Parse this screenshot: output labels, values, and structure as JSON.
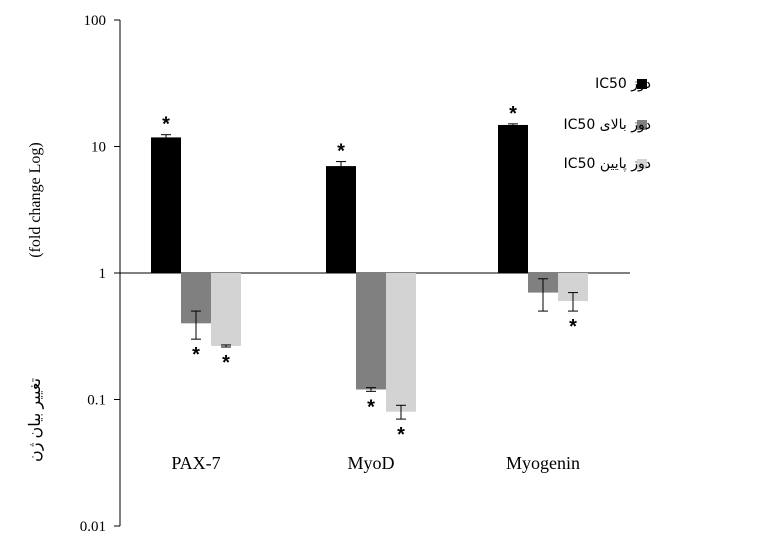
{
  "chart_data": {
    "type": "bar",
    "yscale": "log",
    "ylim": [
      0.01,
      100
    ],
    "baseline": 1,
    "yticks": [
      "0.01",
      "0.1",
      "1",
      "10",
      "100"
    ],
    "categories": [
      "PAX-7",
      "MyoD",
      "Myogenin"
    ],
    "ylabel_en": "(fold change Log)",
    "ylabel_fa": "تغییر بیان ژن",
    "series": [
      {
        "name": "دوز IC50",
        "color": "#000000",
        "values": [
          11.8,
          7.0,
          14.8
        ],
        "err": [
          0.6,
          0.6,
          0.3
        ],
        "significant": [
          true,
          true,
          true
        ]
      },
      {
        "name": "دوز بالای IC50",
        "color": "#808080",
        "values": [
          0.4,
          0.12,
          0.7
        ],
        "err": [
          0.1,
          0.004,
          0.2
        ],
        "significant": [
          true,
          true,
          false
        ]
      },
      {
        "name": "دوز پایین IC50",
        "color": "#d3d3d3",
        "values": [
          0.265,
          0.08,
          0.6
        ],
        "err": [
          0.005,
          0.01,
          0.1
        ],
        "significant": [
          true,
          true,
          true
        ]
      }
    ],
    "marker_symbol": "*",
    "legend_position": "right",
    "grid": false
  }
}
